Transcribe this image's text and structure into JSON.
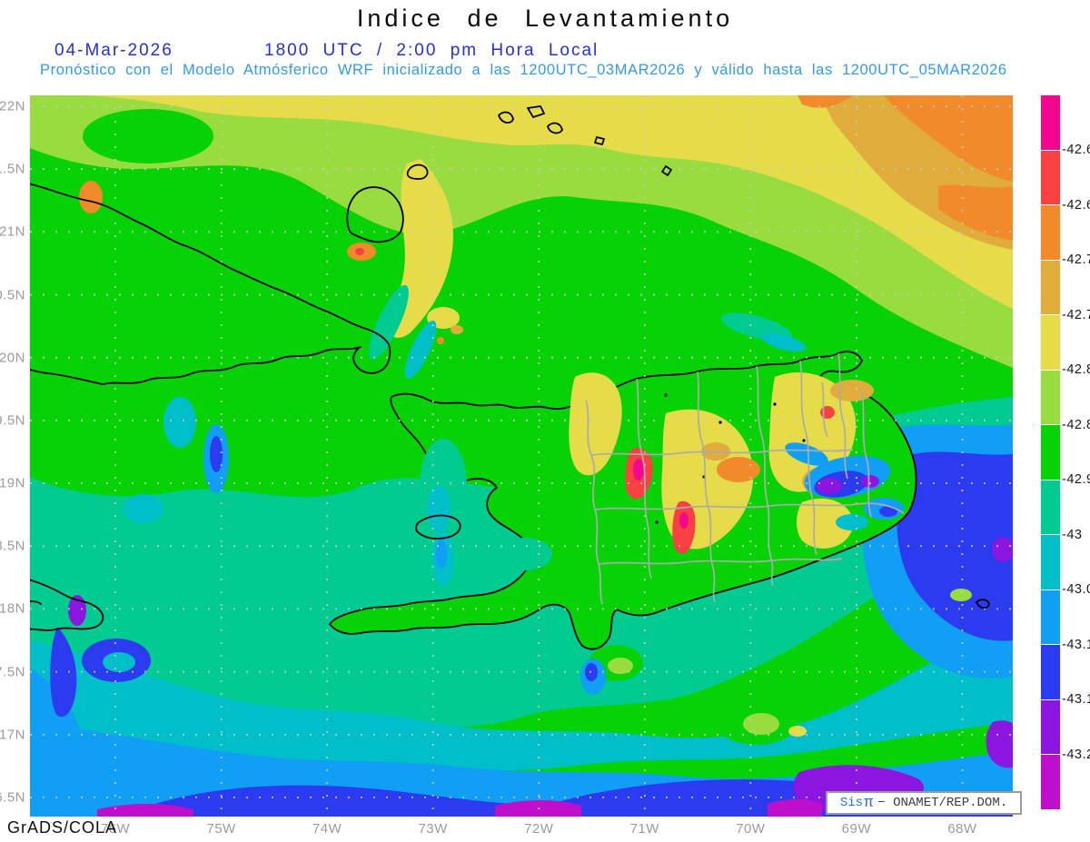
{
  "header": {
    "title": "Indice de Levantamiento",
    "date": "04-Mar-2026",
    "local_time": "1800 UTC / 2:00 pm Hora Local",
    "forecast_note": "Pronóstico con el Modelo Atmósferico WRF inicializado a las 1200UTC_03MAR2026 y válido hasta las  1200UTC_05MAR2026"
  },
  "axes": {
    "y_labels": [
      "22N",
      "1.5N",
      "21N",
      "0.5N",
      "20N",
      "9.5N",
      "19N",
      "8.5N",
      "18N",
      "7.5N",
      "17N",
      "6.5N"
    ],
    "x_labels": [
      "76W",
      "75W",
      "74W",
      "73W",
      "72W",
      "71W",
      "70W",
      "69W",
      "68W"
    ]
  },
  "colorbar": {
    "colors": [
      "#F2088E",
      "#F94141",
      "#F08A2B",
      "#E0AC3C",
      "#E6DC4A",
      "#99DC3F",
      "#06D206",
      "#02CB92",
      "#00BFC9",
      "#109FF4",
      "#2A3BF0",
      "#8B16DF",
      "#BE10CC"
    ],
    "labels": [
      "-42.6",
      "-42.6",
      "-42.7",
      "-42.7",
      "-42.8",
      "-42.8",
      "-42.9",
      "-43",
      "-43.0",
      "-43.1",
      "-43.1",
      "-43.2"
    ]
  },
  "footer": {
    "credit": "GrADS/COLA",
    "badge_sis": "Sis",
    "badge_pi": "π",
    "badge_rest": "− ONAMET/REP.DOM."
  },
  "chart_data": {
    "type": "heatmap",
    "title": "Indice de Levantamiento",
    "x_tick_labels": [
      "76W",
      "75W",
      "74W",
      "73W",
      "72W",
      "71W",
      "70W",
      "69W",
      "68W"
    ],
    "y_tick_labels": [
      "22N",
      "1.5N",
      "21N",
      "0.5N",
      "20N",
      "9.5N",
      "19N",
      "8.5N",
      "18N",
      "7.5N",
      "17N",
      "6.5N"
    ],
    "legend": {
      "position": "right",
      "labels": [
        "-42.6",
        "-42.6",
        "-42.7",
        "-42.7",
        "-42.8",
        "-42.8",
        "-42.9",
        "-43",
        "-43.0",
        "-43.1",
        "-43.1",
        "-43.2"
      ],
      "colors": [
        "#F2088E",
        "#F94141",
        "#F08A2B",
        "#E0AC3C",
        "#E6DC4A",
        "#99DC3F",
        "#06D206",
        "#02CB92",
        "#00BFC9",
        "#109FF4",
        "#2A3BF0",
        "#8B16DF",
        "#BE10CC"
      ]
    },
    "field_summary": "Filled contour field: orange/yellow band across the north, broad green mid-band over Cuba and Hispaniola with yellow-orange-red maxima over the central Dominican Republic, teal/cyan to blue across the south with violet/magenta minima along the bottom and east of Hispaniola"
  }
}
